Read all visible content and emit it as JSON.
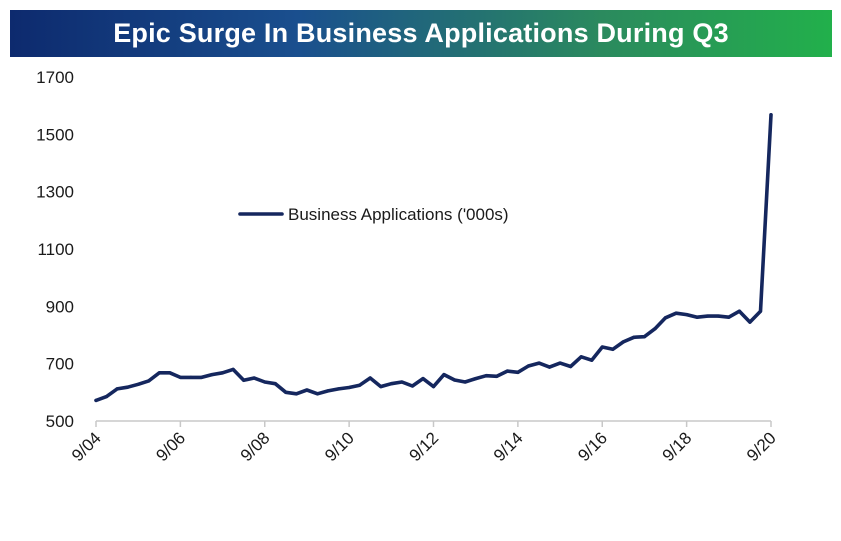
{
  "title": "Epic Surge In Business Applications During Q3",
  "colors": {
    "series": "#15275e",
    "axis": "#c8c8c8",
    "title_start": "#0d2a6e",
    "title_end": "#22b04b"
  },
  "chart_data": {
    "type": "line",
    "title": "Epic Surge In Business Applications During Q3",
    "xlabel": "",
    "ylabel": "",
    "ylim": [
      500,
      1700
    ],
    "yticks": [
      500,
      700,
      900,
      1100,
      1300,
      1500,
      1700
    ],
    "xticks": [
      "9/04",
      "9/06",
      "9/08",
      "9/10",
      "9/12",
      "9/14",
      "9/16",
      "9/18",
      "9/20"
    ],
    "xtick_positions": [
      2004.667,
      2006.667,
      2008.667,
      2010.667,
      2012.667,
      2014.667,
      2016.667,
      2018.667,
      2020.667
    ],
    "xlim": [
      2004.667,
      2020.667
    ],
    "grid": false,
    "legend_position": "upper-center",
    "series": [
      {
        "name": "Business Applications ('000s)",
        "x": [
          2004.667,
          2004.917,
          2005.167,
          2005.417,
          2005.667,
          2005.917,
          2006.167,
          2006.417,
          2006.667,
          2006.917,
          2007.167,
          2007.417,
          2007.667,
          2007.917,
          2008.167,
          2008.417,
          2008.667,
          2008.917,
          2009.167,
          2009.417,
          2009.667,
          2009.917,
          2010.167,
          2010.417,
          2010.667,
          2010.917,
          2011.167,
          2011.417,
          2011.667,
          2011.917,
          2012.167,
          2012.417,
          2012.667,
          2012.917,
          2013.167,
          2013.417,
          2013.667,
          2013.917,
          2014.167,
          2014.417,
          2014.667,
          2014.917,
          2015.167,
          2015.417,
          2015.667,
          2015.917,
          2016.167,
          2016.417,
          2016.667,
          2016.917,
          2017.167,
          2017.417,
          2017.667,
          2017.917,
          2018.167,
          2018.417,
          2018.667,
          2018.917,
          2019.167,
          2019.417,
          2019.667,
          2019.917,
          2020.167,
          2020.417,
          2020.667
        ],
        "values": [
          572,
          585,
          612,
          618,
          628,
          640,
          668,
          668,
          652,
          652,
          652,
          662,
          668,
          680,
          642,
          650,
          636,
          630,
          600,
          595,
          608,
          595,
          605,
          612,
          617,
          625,
          650,
          620,
          630,
          636,
          622,
          648,
          620,
          662,
          643,
          636,
          648,
          658,
          656,
          674,
          670,
          692,
          702,
          688,
          702,
          690,
          724,
          712,
          758,
          750,
          776,
          792,
          794,
          822,
          860,
          876,
          871,
          862,
          866,
          866,
          862,
          883,
          845,
          883,
          1568
        ]
      }
    ]
  }
}
